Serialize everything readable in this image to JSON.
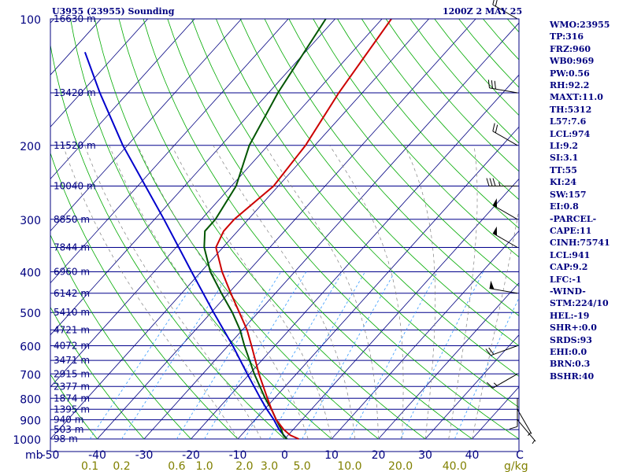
{
  "header": {
    "station": "U3955 (23955) Sounding",
    "time": "1200Z  2 MAY 25"
  },
  "indices": [
    "WMO:23955",
    "TP:316",
    "FRZ:960",
    "WB0:969",
    "PW:0.56",
    "RH:92.2",
    "MAXT:11.0",
    "TH:5312",
    "L57:7.6",
    "LCL:974",
    "LI:9.2",
    "SI:3.1",
    "TT:55",
    "KI:24",
    "SW:157",
    "EI:0.8",
    "-PARCEL-",
    "CAPE:11",
    "CINH:75741",
    "LCL:941",
    "CAP:9.2",
    "LFC:-1",
    "-WIND-",
    "STM:224/10",
    "HEL:-19",
    "SHR+:0.0",
    "SRDS:93",
    "EHI:0.0",
    "BRN:0.3",
    "BSHR:40"
  ],
  "chart_data": {
    "type": "line",
    "diagram": "skew-t log-p",
    "colors": {
      "isobar": "#00008b",
      "isotherm": "#000080",
      "dry_adiabat": "#00aa00",
      "moist_adiabat": "#808080",
      "mixing_ratio": "#3399ff",
      "temperature": "#cc0000",
      "dewpoint": "#005500",
      "parcel": "#0000cc",
      "tick_label": "#000080",
      "mixing_ratio_label": "#808000"
    },
    "pressure_axis": {
      "unit": "mb",
      "range": [
        1000,
        100
      ],
      "scale": "log",
      "tick_labels": [
        100,
        200,
        300,
        400,
        500,
        600,
        700,
        800,
        900,
        1000
      ]
    },
    "temperature_axis": {
      "unit": "C",
      "range": [
        -50,
        50
      ],
      "tick_labels": [
        -50,
        -40,
        -30,
        -20,
        -10,
        0,
        10,
        20,
        30,
        40
      ]
    },
    "height_labels": [
      {
        "p": 100,
        "label": "16630 m"
      },
      {
        "p": 150,
        "label": "13420 m"
      },
      {
        "p": 200,
        "label": "11520 m"
      },
      {
        "p": 250,
        "label": "10040 m"
      },
      {
        "p": 300,
        "label": "8850 m"
      },
      {
        "p": 350,
        "label": "7844 m"
      },
      {
        "p": 400,
        "label": "6960 m"
      },
      {
        "p": 450,
        "label": "6142 m"
      },
      {
        "p": 500,
        "label": "5410 m"
      },
      {
        "p": 550,
        "label": "4721 m"
      },
      {
        "p": 600,
        "label": "4072 m"
      },
      {
        "p": 650,
        "label": "3471 m"
      },
      {
        "p": 700,
        "label": "2915 m"
      },
      {
        "p": 750,
        "label": "2377 m"
      },
      {
        "p": 800,
        "label": "1874 m"
      },
      {
        "p": 850,
        "label": "1395 m"
      },
      {
        "p": 900,
        "label": "940 m"
      },
      {
        "p": 950,
        "label": "503 m"
      },
      {
        "p": 1000,
        "label": "98 m"
      }
    ],
    "mixing_ratio_labels": [
      "0.1",
      "0.2",
      "0.6",
      "1.0",
      "2.0",
      "3.0",
      "5.0",
      "10.0",
      "20.0",
      "40.0"
    ],
    "mixing_ratio_unit": "g/kg",
    "mixing_ratio_values": [
      0.1,
      0.2,
      0.6,
      1.0,
      2.0,
      3.0,
      5.0,
      10.0,
      20.0,
      40.0
    ],
    "temperature": [
      {
        "p": 1000,
        "t": 3.0
      },
      {
        "p": 980,
        "t": 0.5
      },
      {
        "p": 950,
        "t": -2.0
      },
      {
        "p": 900,
        "t": -5.5
      },
      {
        "p": 850,
        "t": -8.5
      },
      {
        "p": 800,
        "t": -11.5
      },
      {
        "p": 700,
        "t": -18.0
      },
      {
        "p": 600,
        "t": -25.0
      },
      {
        "p": 550,
        "t": -29.0
      },
      {
        "p": 500,
        "t": -34.0
      },
      {
        "p": 450,
        "t": -39.5
      },
      {
        "p": 400,
        "t": -45.5
      },
      {
        "p": 350,
        "t": -51.5
      },
      {
        "p": 320,
        "t": -53.0
      },
      {
        "p": 300,
        "t": -53.0
      },
      {
        "p": 250,
        "t": -51.0
      },
      {
        "p": 200,
        "t": -52.0
      },
      {
        "p": 150,
        "t": -55.0
      },
      {
        "p": 100,
        "t": -58.0
      }
    ],
    "dewpoint": [
      {
        "p": 1000,
        "t": 0.5
      },
      {
        "p": 980,
        "t": -1.0
      },
      {
        "p": 950,
        "t": -2.5
      },
      {
        "p": 900,
        "t": -5.5
      },
      {
        "p": 850,
        "t": -8.5
      },
      {
        "p": 800,
        "t": -12.0
      },
      {
        "p": 700,
        "t": -19.0
      },
      {
        "p": 600,
        "t": -26.5
      },
      {
        "p": 550,
        "t": -30.5
      },
      {
        "p": 500,
        "t": -35.5
      },
      {
        "p": 450,
        "t": -41.5
      },
      {
        "p": 400,
        "t": -48.0
      },
      {
        "p": 350,
        "t": -54.0
      },
      {
        "p": 320,
        "t": -57.0
      },
      {
        "p": 300,
        "t": -57.0
      },
      {
        "p": 250,
        "t": -59.0
      },
      {
        "p": 200,
        "t": -64.0
      },
      {
        "p": 150,
        "t": -68.0
      },
      {
        "p": 100,
        "t": -72.0
      }
    ],
    "parcel": [
      {
        "p": 1000,
        "t": 0.5
      },
      {
        "p": 950,
        "t": -3.0
      },
      {
        "p": 900,
        "t": -6.0
      },
      {
        "p": 850,
        "t": -9.5
      },
      {
        "p": 800,
        "t": -13.0
      },
      {
        "p": 700,
        "t": -20.5
      },
      {
        "p": 600,
        "t": -29.0
      },
      {
        "p": 500,
        "t": -39.5
      },
      {
        "p": 400,
        "t": -52.0
      },
      {
        "p": 300,
        "t": -68.0
      },
      {
        "p": 200,
        "t": -91.0
      },
      {
        "p": 150,
        "t": -106.0
      },
      {
        "p": 120,
        "t": -117.0
      }
    ],
    "wind_barbs": [
      {
        "p": 100,
        "dir": 300,
        "spd": 20
      },
      {
        "p": 150,
        "dir": 280,
        "spd": 30
      },
      {
        "p": 200,
        "dir": 300,
        "spd": 20
      },
      {
        "p": 250,
        "dir": 270,
        "spd": 35
      },
      {
        "p": 300,
        "dir": 300,
        "spd": 50
      },
      {
        "p": 350,
        "dir": 300,
        "spd": 50
      },
      {
        "p": 450,
        "dir": 280,
        "spd": 50
      },
      {
        "p": 600,
        "dir": 250,
        "spd": 20
      },
      {
        "p": 700,
        "dir": 240,
        "spd": 15
      },
      {
        "p": 800,
        "dir": 180,
        "spd": 10
      },
      {
        "p": 850,
        "dir": 150,
        "spd": 5
      },
      {
        "p": 900,
        "dir": 140,
        "spd": 5
      }
    ],
    "grid": true,
    "legend": "none"
  }
}
